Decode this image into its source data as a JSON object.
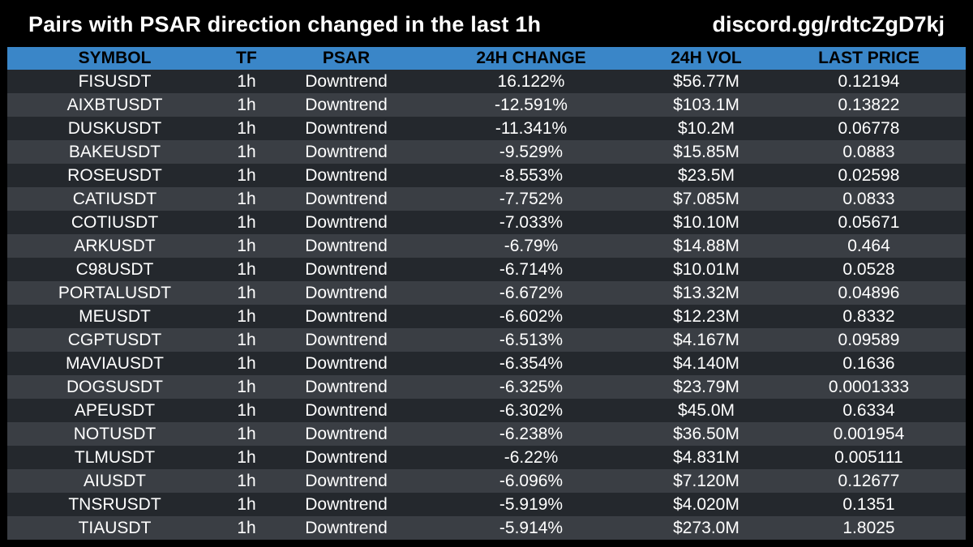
{
  "header": {
    "title": "Pairs with PSAR direction changed in the last 1h",
    "link": "discord.gg/rdtcZgD7kj"
  },
  "colors": {
    "background": "#000000",
    "header_row": "#3a86c8",
    "row_dark": "#24282d",
    "row_light": "#3a3e44",
    "text": "#ffffff"
  },
  "table": {
    "columns": [
      "SYMBOL",
      "TF",
      "PSAR",
      "24H CHANGE",
      "24H VOL",
      "LAST PRICE"
    ],
    "rows": [
      [
        "FISUSDT",
        "1h",
        "Downtrend",
        "16.122%",
        "$56.77M",
        "0.12194"
      ],
      [
        "AIXBTUSDT",
        "1h",
        "Downtrend",
        "-12.591%",
        "$103.1M",
        "0.13822"
      ],
      [
        "DUSKUSDT",
        "1h",
        "Downtrend",
        "-11.341%",
        "$10.2M",
        "0.06778"
      ],
      [
        "BAKEUSDT",
        "1h",
        "Downtrend",
        "-9.529%",
        "$15.85M",
        "0.0883"
      ],
      [
        "ROSEUSDT",
        "1h",
        "Downtrend",
        "-8.553%",
        "$23.5M",
        "0.02598"
      ],
      [
        "CATIUSDT",
        "1h",
        "Downtrend",
        "-7.752%",
        "$7.085M",
        "0.0833"
      ],
      [
        "COTIUSDT",
        "1h",
        "Downtrend",
        "-7.033%",
        "$10.10M",
        "0.05671"
      ],
      [
        "ARKUSDT",
        "1h",
        "Downtrend",
        "-6.79%",
        "$14.88M",
        "0.464"
      ],
      [
        "C98USDT",
        "1h",
        "Downtrend",
        "-6.714%",
        "$10.01M",
        "0.0528"
      ],
      [
        "PORTALUSDT",
        "1h",
        "Downtrend",
        "-6.672%",
        "$13.32M",
        "0.04896"
      ],
      [
        "MEUSDT",
        "1h",
        "Downtrend",
        "-6.602%",
        "$12.23M",
        "0.8332"
      ],
      [
        "CGPTUSDT",
        "1h",
        "Downtrend",
        "-6.513%",
        "$4.167M",
        "0.09589"
      ],
      [
        "MAVIAUSDT",
        "1h",
        "Downtrend",
        "-6.354%",
        "$4.140M",
        "0.1636"
      ],
      [
        "DOGSUSDT",
        "1h",
        "Downtrend",
        "-6.325%",
        "$23.79M",
        "0.0001333"
      ],
      [
        "APEUSDT",
        "1h",
        "Downtrend",
        "-6.302%",
        "$45.0M",
        "0.6334"
      ],
      [
        "NOTUSDT",
        "1h",
        "Downtrend",
        "-6.238%",
        "$36.50M",
        "0.001954"
      ],
      [
        "TLMUSDT",
        "1h",
        "Downtrend",
        "-6.22%",
        "$4.831M",
        "0.005111"
      ],
      [
        "AIUSDT",
        "1h",
        "Downtrend",
        "-6.096%",
        "$7.120M",
        "0.12677"
      ],
      [
        "TNSRUSDT",
        "1h",
        "Downtrend",
        "-5.919%",
        "$4.020M",
        "0.1351"
      ],
      [
        "TIAUSDT",
        "1h",
        "Downtrend",
        "-5.914%",
        "$273.0M",
        "1.8025"
      ]
    ]
  }
}
